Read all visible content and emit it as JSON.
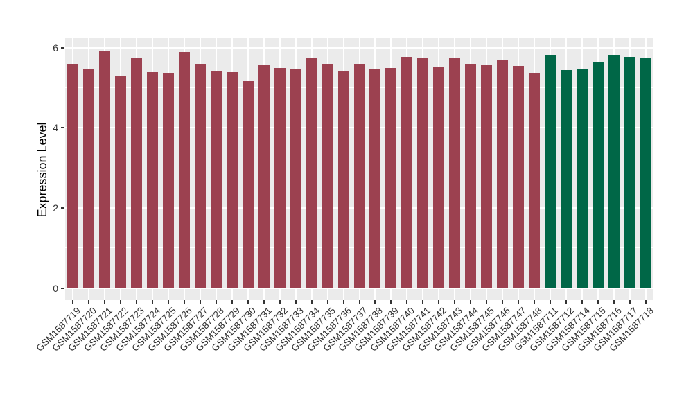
{
  "chart_data": {
    "type": "bar",
    "title": "",
    "xlabel": "",
    "ylabel": "Expression Level",
    "ylim": [
      0,
      6
    ],
    "yticks": [
      0,
      2,
      4,
      6
    ],
    "grid": true,
    "legend_position": "none",
    "categories": [
      "GSM1587719",
      "GSM1587720",
      "GSM1587721",
      "GSM1587722",
      "GSM1587723",
      "GSM1587724",
      "GSM1587725",
      "GSM1587726",
      "GSM1587727",
      "GSM1587728",
      "GSM1587729",
      "GSM1587730",
      "GSM1587731",
      "GSM1587732",
      "GSM1587733",
      "GSM1587734",
      "GSM1587735",
      "GSM1587736",
      "GSM1587737",
      "GSM1587738",
      "GSM1587739",
      "GSM1587740",
      "GSM1587741",
      "GSM1587742",
      "GSM1587743",
      "GSM1587744",
      "GSM1587745",
      "GSM1587746",
      "GSM1587747",
      "GSM1587748",
      "GSM1587711",
      "GSM1587712",
      "GSM1587714",
      "GSM1587715",
      "GSM1587716",
      "GSM1587717",
      "GSM1587718"
    ],
    "values": [
      5.59,
      5.46,
      5.91,
      5.28,
      5.75,
      5.39,
      5.35,
      5.9,
      5.59,
      5.42,
      5.39,
      5.16,
      5.57,
      5.5,
      5.47,
      5.73,
      5.58,
      5.43,
      5.58,
      5.47,
      5.5,
      5.77,
      5.76,
      5.52,
      5.74,
      5.58,
      5.57,
      5.68,
      5.54,
      5.38,
      5.83,
      5.45,
      5.48,
      5.65,
      5.81,
      5.78,
      5.76
    ],
    "group_index": [
      0,
      0,
      0,
      0,
      0,
      0,
      0,
      0,
      0,
      0,
      0,
      0,
      0,
      0,
      0,
      0,
      0,
      0,
      0,
      0,
      0,
      0,
      0,
      0,
      0,
      0,
      0,
      0,
      0,
      0,
      1,
      1,
      1,
      1,
      1,
      1,
      1
    ],
    "palette": [
      "#9C4150",
      "#006747"
    ],
    "panel_bg": "#EBEBEB",
    "grid_color": "#FFFFFF",
    "axis_text_color": "#333333"
  }
}
